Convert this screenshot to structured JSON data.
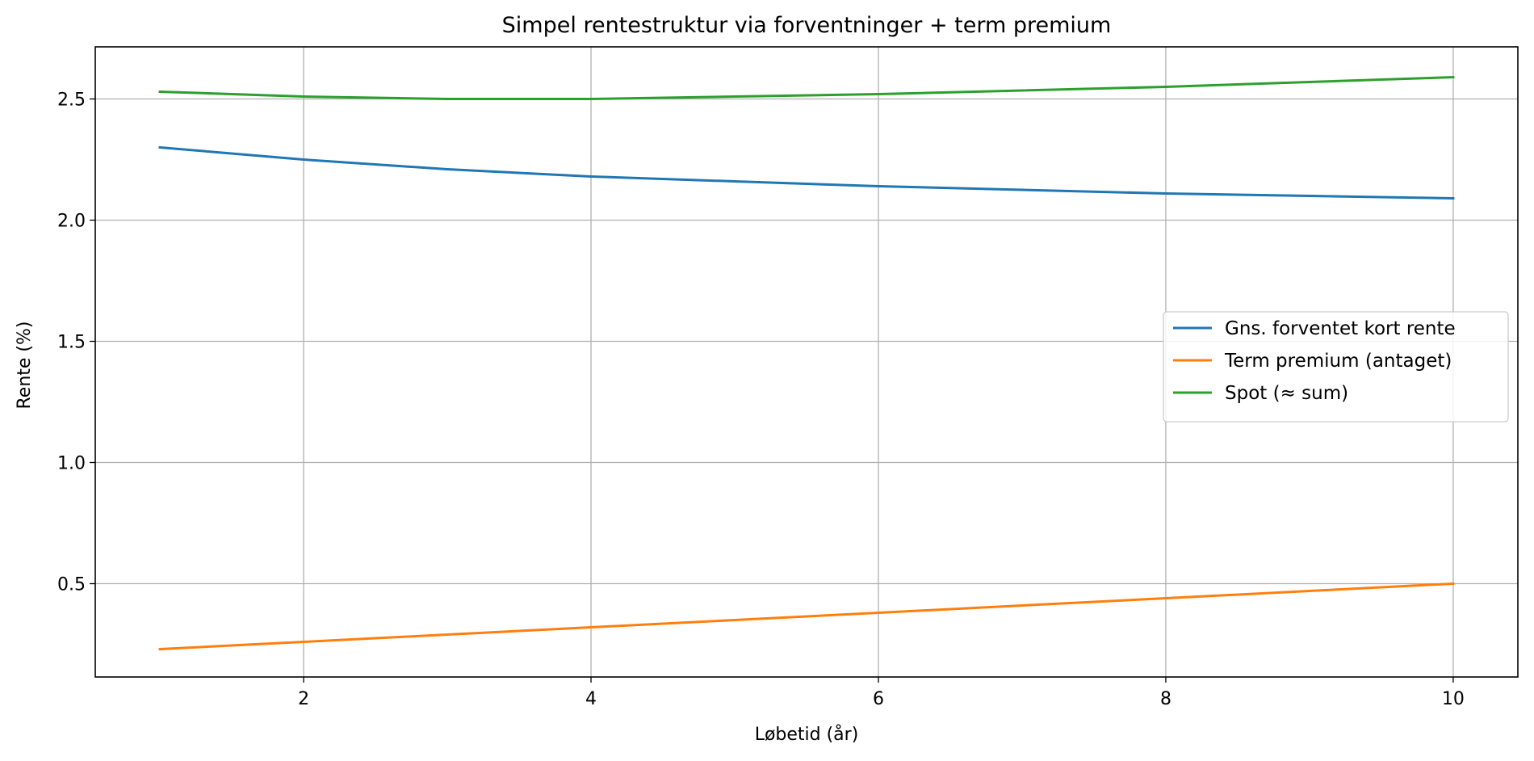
{
  "chart_data": {
    "type": "line",
    "title": "Simpel rentestruktur via forventninger + term premium",
    "xlabel": "Løbetid (år)",
    "ylabel": "Rente (%)",
    "xlim": [
      0.55,
      10.45
    ],
    "ylim": [
      0.115,
      2.715
    ],
    "xticks": [
      2,
      4,
      6,
      8,
      10
    ],
    "xtick_labels": [
      "2",
      "4",
      "6",
      "8",
      "10"
    ],
    "yticks": [
      0.5,
      1.0,
      1.5,
      2.0,
      2.5
    ],
    "ytick_labels": [
      "0.5",
      "1.0",
      "1.5",
      "2.0",
      "2.5"
    ],
    "grid": true,
    "legend_position": "center-right",
    "x": [
      1,
      2,
      3,
      4,
      5,
      6,
      7,
      8,
      9,
      10
    ],
    "series": [
      {
        "name": "Gns. forventet kort rente",
        "color": "#1f77b4",
        "values": [
          2.3,
          2.25,
          2.21,
          2.18,
          2.16,
          2.14,
          2.125,
          2.11,
          2.1,
          2.09
        ]
      },
      {
        "name": "Term premium (antaget)",
        "color": "#ff7f0e",
        "values": [
          0.23,
          0.26,
          0.29,
          0.32,
          0.35,
          0.38,
          0.41,
          0.44,
          0.47,
          0.5
        ]
      },
      {
        "name": "Spot (≈ sum)",
        "color": "#2ca02c",
        "values": [
          2.53,
          2.51,
          2.5,
          2.5,
          2.51,
          2.52,
          2.535,
          2.55,
          2.57,
          2.59
        ]
      }
    ]
  }
}
